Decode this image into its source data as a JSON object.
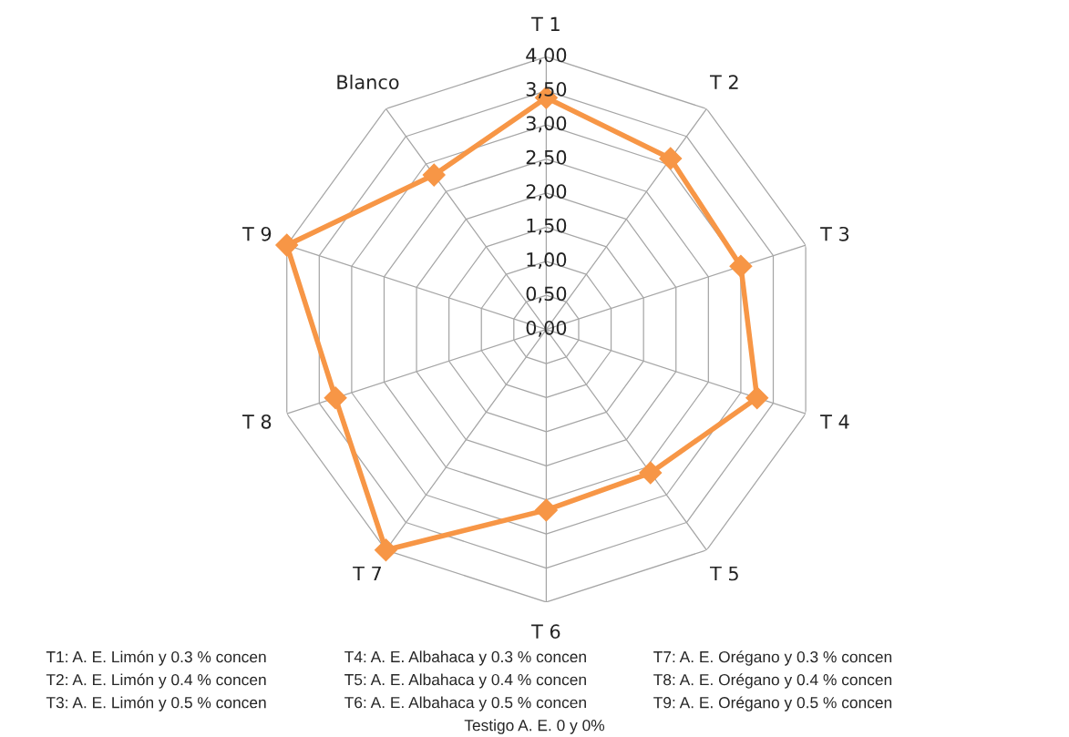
{
  "chart_data": {
    "type": "radar",
    "categories": [
      "T 1",
      "T 2",
      "T 3",
      "T 4",
      "T 5",
      "T 6",
      "T 7",
      "T 8",
      "T 9",
      "Blanco"
    ],
    "series": [
      {
        "color": "#f79646",
        "values": [
          3.4,
          3.1,
          3.0,
          3.25,
          2.6,
          2.65,
          4.0,
          3.25,
          4.0,
          2.8
        ]
      }
    ],
    "ylim": [
      0,
      4
    ],
    "yticks": [
      {
        "value": 0,
        "label": "0,00"
      },
      {
        "value": 0.5,
        "label": "0,50"
      },
      {
        "value": 1,
        "label": "1,00"
      },
      {
        "value": 1.5,
        "label": "1,50"
      },
      {
        "value": 2,
        "label": "2,00"
      },
      {
        "value": 2.5,
        "label": "2,50"
      },
      {
        "value": 3,
        "label": "3,00"
      },
      {
        "value": 3.5,
        "label": "3,50"
      },
      {
        "value": 4,
        "label": "4,00"
      }
    ],
    "grid": true,
    "marker": "diamond",
    "line_style": "solid",
    "annotations": [
      "T1: A. E. Limón y 0.3 % concen",
      "T2: A. E. Limón y 0.4 % concen",
      "T3: A. E. Limón y 0.5 % concen",
      "T4: A. E. Albahaca y 0.3 % concen",
      "T5: A. E. Albahaca y 0.4 % concen",
      "T6: A. E. Albahaca y 0.5 % concen",
      "T7: A. E. Orégano y 0.3 % concen",
      "T8: A. E. Orégano y 0.4 % concen",
      "T9: A. E. Orégano y 0.5 % concen",
      "Testigo A. E. 0 y 0%"
    ]
  }
}
